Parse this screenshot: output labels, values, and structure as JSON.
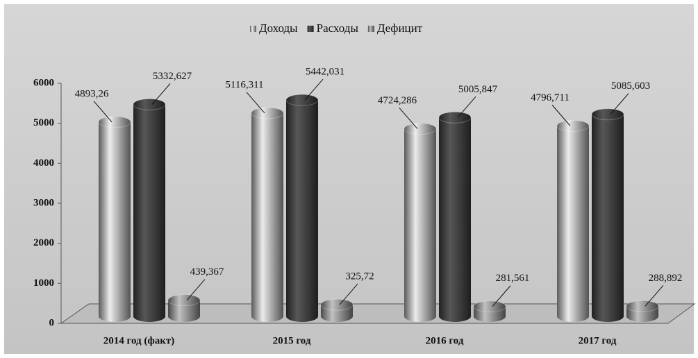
{
  "chart_data": {
    "type": "bar",
    "categories": [
      "2014 год (факт)",
      "2015 год",
      "2016 год",
      "2017 год"
    ],
    "series": [
      {
        "name": "Доходы",
        "color": "#a3a3a3",
        "values": [
          4893.26,
          5116.311,
          4724.286,
          4796.711
        ],
        "value_labels": [
          "4893,26",
          "5116,311",
          "4724,286",
          "4796,711"
        ]
      },
      {
        "name": "Расходы",
        "color": "#3c3c3c",
        "values": [
          5332.627,
          5442.031,
          5005.847,
          5085.603
        ],
        "value_labels": [
          "5332,627",
          "5442,031",
          "5005,847",
          "5085,603"
        ]
      },
      {
        "name": "Дефицит",
        "color": "#858585",
        "values": [
          439.367,
          325.72,
          281.561,
          288.892
        ],
        "value_labels": [
          "439,367",
          "325,72",
          "281,561",
          "288,892"
        ]
      }
    ],
    "ylim": [
      0,
      6000
    ],
    "yticks": [
      0,
      1000,
      2000,
      3000,
      4000,
      5000,
      6000
    ],
    "legend": "top"
  }
}
